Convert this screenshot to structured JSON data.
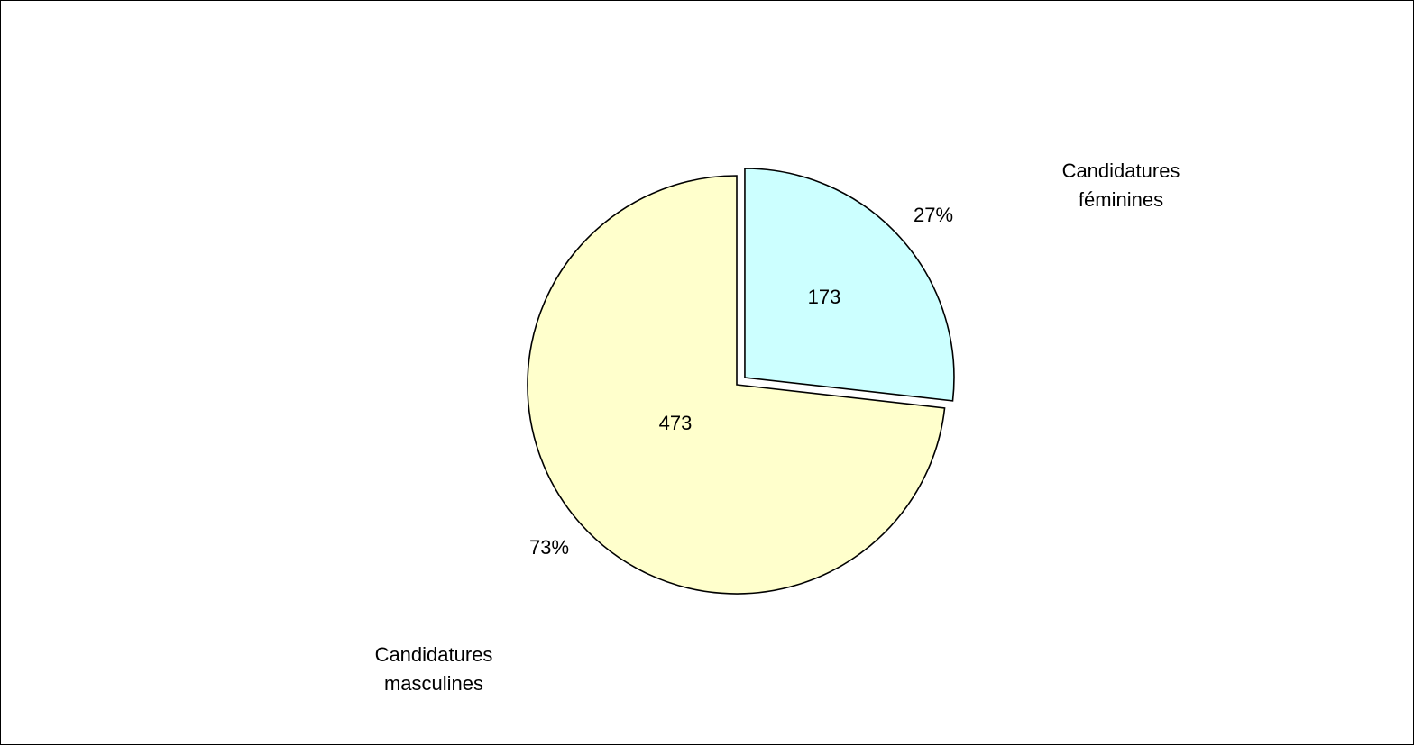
{
  "chart_data": {
    "type": "pie",
    "slices": [
      {
        "label_lines": [
          "Candidatures",
          "féminines"
        ],
        "value": 173,
        "value_label": "173",
        "percent_label": "27%",
        "color": "#ccffff",
        "exploded": true
      },
      {
        "label_lines": [
          "Candidatures",
          "masculines"
        ],
        "value": 473,
        "value_label": "473",
        "percent_label": "73%",
        "color": "#ffffcc",
        "exploded": false
      }
    ],
    "start_angle": "12 o'clock",
    "direction": "clockwise",
    "legend": "none"
  }
}
